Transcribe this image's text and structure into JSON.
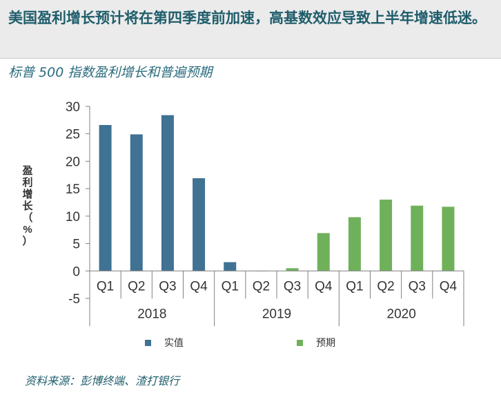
{
  "headline": "美国盈利增长预计将在第四季度前加速，高基数效应导致上半年增速低迷。",
  "subtitle": "标普 500 指数盈利增长和普遍预期",
  "source": "资料来源：彭博终端、渣打银行",
  "chart_data": {
    "type": "bar",
    "title": "",
    "ylabel": "盈利增长（%）",
    "xlabel": "",
    "ylim": [
      -5,
      30
    ],
    "yticks": [
      -5,
      0,
      5,
      10,
      15,
      20,
      25,
      30
    ],
    "grid": false,
    "legend_position": "bottom",
    "colors": {
      "实值": "#3f7293",
      "预期": "#6fb15b"
    },
    "categories": [
      "Q1",
      "Q2",
      "Q3",
      "Q4",
      "Q1",
      "Q2",
      "Q3",
      "Q4",
      "Q1",
      "Q2",
      "Q3",
      "Q4"
    ],
    "year_groups": [
      {
        "label": "2018",
        "span": 4
      },
      {
        "label": "2019",
        "span": 4
      },
      {
        "label": "2020",
        "span": 4
      }
    ],
    "series": [
      {
        "name": "实值",
        "values": [
          26.6,
          24.9,
          28.4,
          16.9,
          1.6,
          null,
          null,
          null,
          null,
          null,
          null,
          null
        ]
      },
      {
        "name": "预期",
        "values": [
          null,
          null,
          null,
          null,
          null,
          0.0,
          0.5,
          6.9,
          9.8,
          13.0,
          11.9,
          11.7
        ]
      }
    ]
  }
}
